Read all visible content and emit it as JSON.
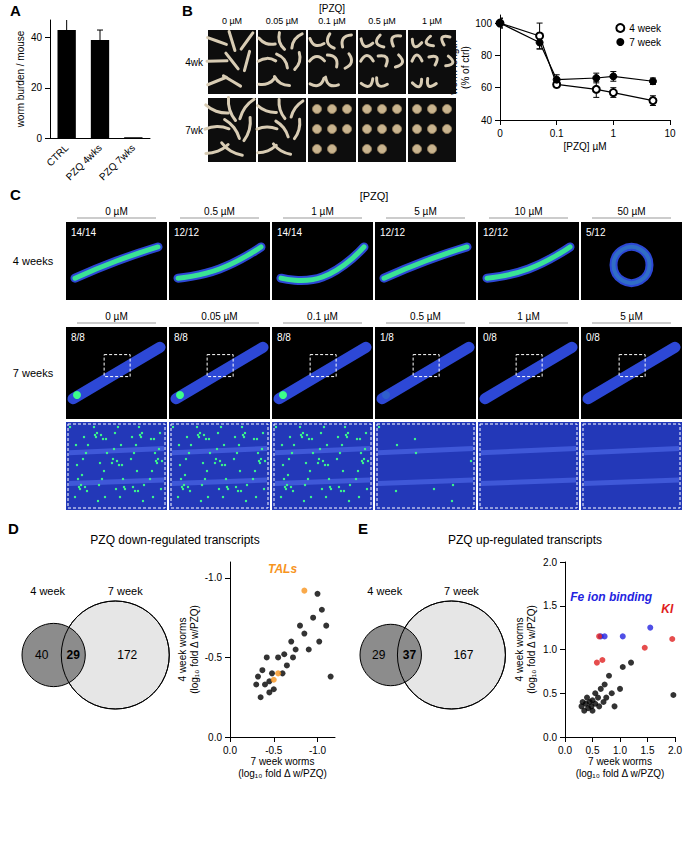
{
  "chart_data": [
    {
      "panel": "A",
      "type": "bar",
      "categories": [
        "CTRL",
        "PZQ 4wks",
        "PZQ 7wks"
      ],
      "values": [
        43,
        39,
        0.3
      ],
      "errors": [
        5,
        4,
        0
      ],
      "color": "#000000",
      "ylabel": "worm burden / mouse",
      "ylim": [
        0,
        47
      ],
      "yticks": [
        0,
        20,
        40
      ],
      "grid": false
    },
    {
      "type": "line",
      "xlabel": "[PZQ] µM",
      "ylabel": "worm length\n(% of ctrl)",
      "log": "x",
      "x": [
        0.01,
        0.05,
        0.1,
        0.5,
        1,
        5
      ],
      "series": [
        {
          "name": "4 week",
          "color": "#000000",
          "marker": "open_circle",
          "values": [
            100,
            92,
            62,
            59,
            57,
            52
          ],
          "errors": [
            3,
            8,
            2,
            5,
            3,
            3
          ]
        },
        {
          "name": "7 week",
          "color": "#000000",
          "marker": "circle",
          "values": [
            100,
            88,
            65,
            66,
            67,
            64
          ],
          "errors": [
            3,
            4,
            3,
            3,
            3,
            2
          ]
        }
      ],
      "xlim": [
        0.01,
        10
      ],
      "xticks": [
        {
          "value": 0.01,
          "label": "0"
        },
        0.1,
        1,
        10
      ],
      "ylim": [
        40,
        105
      ],
      "yticks": [
        40,
        60,
        80,
        100
      ],
      "legend": "upper right",
      "grid": false
    },
    {
      "type": "scatter",
      "xlabel": "7 week worms\n(log₁₀ fold Δ w/PZQ)",
      "ylabel": "4 week worms\n(log₁₀ fold Δ w/PZQ)",
      "xlim": [
        0,
        -1.2
      ],
      "xticks": [
        {
          "value": 0,
          "label": "0.0"
        },
        -0.5,
        {
          "value": -1,
          "label": "-1.0"
        }
      ],
      "ylim": [
        0,
        -1.1
      ],
      "yticks": [
        {
          "value": 0,
          "label": "0.0"
        },
        -0.5,
        {
          "value": -1,
          "label": "-1.0"
        }
      ],
      "grid": false,
      "series": [
        {
          "color": "#000000",
          "x": [
            -0.3,
            -0.32,
            -0.35,
            -0.37,
            -0.4,
            -0.42,
            -0.45,
            -0.45,
            -0.48,
            -0.5,
            -0.55,
            -0.6,
            -0.62,
            -0.65,
            -0.7,
            -0.72,
            -0.75,
            -0.8,
            -0.85,
            -0.9,
            -0.95,
            -1.0,
            -1.02,
            -1.05,
            -1.1,
            -1.15
          ],
          "values": [
            -0.33,
            -0.38,
            -0.25,
            -0.42,
            -0.33,
            -0.5,
            -0.35,
            -0.28,
            -0.4,
            -0.3,
            -0.5,
            -0.4,
            -0.52,
            -0.45,
            -0.6,
            -0.5,
            -0.55,
            -0.7,
            -0.65,
            -0.55,
            -0.75,
            -0.9,
            -0.6,
            -0.8,
            -0.7,
            -0.38
          ]
        },
        {
          "name": "TALs",
          "color": "#f7941d",
          "x": [
            -0.85,
            -0.55,
            -0.5
          ],
          "values": [
            -0.92,
            -0.4,
            -0.36
          ]
        }
      ]
    },
    {
      "type": "scatter",
      "xlabel": "7 week worms\n(log₁₀ fold Δ w/PZQ)",
      "ylabel": "4 week worms\n(log₁₀ fold Δ w/PZQ)",
      "xlim": [
        0,
        2
      ],
      "xticks": [
        {
          "value": 0,
          "label": "0.0"
        },
        0.5,
        {
          "value": 1,
          "label": "1.0"
        },
        1.5,
        {
          "value": 2,
          "label": "2.0"
        }
      ],
      "ylim": [
        0,
        2
      ],
      "yticks": [
        {
          "value": 0,
          "label": "0.0"
        },
        0.5,
        {
          "value": 1,
          "label": "1.0"
        },
        1.5,
        {
          "value": 2,
          "label": "2.0"
        }
      ],
      "grid": false,
      "series": [
        {
          "color": "#000000",
          "x": [
            0.3,
            0.32,
            0.35,
            0.38,
            0.4,
            0.42,
            0.45,
            0.48,
            0.5,
            0.5,
            0.55,
            0.55,
            0.6,
            0.62,
            0.65,
            0.7,
            0.72,
            0.75,
            0.8,
            0.85,
            0.9,
            1.0,
            1.05,
            1.2,
            1.97
          ],
          "values": [
            0.35,
            0.4,
            0.3,
            0.38,
            0.45,
            0.33,
            0.4,
            0.35,
            0.42,
            0.3,
            0.5,
            0.38,
            0.45,
            0.35,
            0.55,
            0.4,
            0.6,
            0.45,
            0.7,
            0.5,
            0.35,
            0.55,
            0.8,
            0.85,
            0.48
          ]
        },
        {
          "name": "Fe ion binding",
          "color": "#2323e0",
          "x": [
            0.65,
            0.72,
            1.05,
            1.55
          ],
          "values": [
            1.15,
            1.15,
            1.15,
            1.25
          ]
        },
        {
          "name": "KI",
          "color": "#e02020",
          "x": [
            0.58,
            0.68,
            0.62,
            1.45,
            1.95
          ],
          "values": [
            0.85,
            0.88,
            1.15,
            1.02,
            1.12
          ]
        }
      ]
    }
  ],
  "image_panels": [
    {
      "panel": "B",
      "header": "[PZQ]",
      "columns": [
        "0 µM",
        "0.05 µM",
        "0.1 µM",
        "0.5 µM",
        "1 µM"
      ],
      "rows": [
        "4wk",
        "7wk"
      ]
    },
    {
      "panel": "C",
      "header": "[PZQ]",
      "rows": [
        {
          "label": "4 weeks",
          "columns": [
            "0 µM",
            "0.5 µM",
            "1 µM",
            "5 µM",
            "10 µM",
            "50 µM"
          ],
          "counts": [
            "14/14",
            "12/12",
            "14/14",
            "12/12",
            "12/12",
            "5/12"
          ]
        },
        {
          "label": "7 weeks",
          "columns": [
            "0 µM",
            "0.05 µM",
            "0.1 µM",
            "0.5 µM",
            "1 µM",
            "5 µM"
          ],
          "counts": [
            "8/8",
            "8/8",
            "8/8",
            "1/8",
            "0/8",
            "0/8"
          ]
        }
      ]
    }
  ],
  "venn_diagrams": [
    {
      "panel": "D",
      "title": "PZQ down-regulated transcripts",
      "sets": [
        "4 week",
        "7 week"
      ],
      "counts": [
        40,
        29,
        172
      ],
      "colors": [
        "#8c8c8c",
        "#e6e6e6"
      ]
    },
    {
      "panel": "E",
      "title": "PZQ up-regulated transcripts",
      "sets": [
        "4 week",
        "7 week"
      ],
      "counts": [
        29,
        37,
        167
      ],
      "colors": [
        "#8c8c8c",
        "#e6e6e6"
      ]
    }
  ]
}
